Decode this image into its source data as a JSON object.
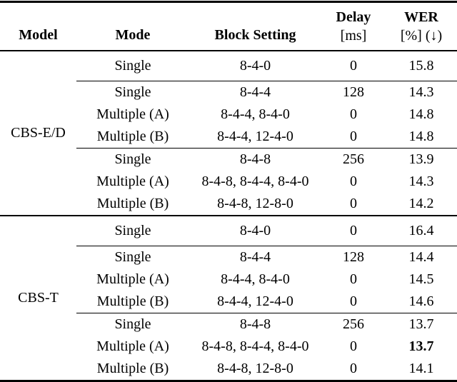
{
  "colors": {
    "background": "#ffffff",
    "text": "#000000",
    "rule": "#000000"
  },
  "headers": {
    "model": "Model",
    "mode": "Mode",
    "block_setting": "Block Setting",
    "delay_top": "Delay",
    "delay_unit": "[ms]",
    "wer_top": "WER",
    "wer_unit": "[%] (↓)"
  },
  "groups": [
    {
      "model": "CBS-E/D",
      "sub": [
        {
          "rows": [
            {
              "mode": "Single",
              "block": "8-4-0",
              "delay": "0",
              "wer": "15.8"
            }
          ]
        },
        {
          "rows": [
            {
              "mode": "Single",
              "block": "8-4-4",
              "delay": "128",
              "wer": "14.3"
            },
            {
              "mode": "Multiple (A)",
              "block": "8-4-4, 8-4-0",
              "delay": "0",
              "wer": "14.8"
            },
            {
              "mode": "Multiple (B)",
              "block": "8-4-4, 12-4-0",
              "delay": "0",
              "wer": "14.8"
            }
          ]
        },
        {
          "rows": [
            {
              "mode": "Single",
              "block": "8-4-8",
              "delay": "256",
              "wer": "13.9"
            },
            {
              "mode": "Multiple (A)",
              "block": "8-4-8, 8-4-4, 8-4-0",
              "delay": "0",
              "wer": "14.3"
            },
            {
              "mode": "Multiple (B)",
              "block": "8-4-8, 12-8-0",
              "delay": "0",
              "wer": "14.2"
            }
          ]
        }
      ]
    },
    {
      "model": "CBS-T",
      "sub": [
        {
          "rows": [
            {
              "mode": "Single",
              "block": "8-4-0",
              "delay": "0",
              "wer": "16.4"
            }
          ]
        },
        {
          "rows": [
            {
              "mode": "Single",
              "block": "8-4-4",
              "delay": "128",
              "wer": "14.4"
            },
            {
              "mode": "Multiple (A)",
              "block": "8-4-4, 8-4-0",
              "delay": "0",
              "wer": "14.5"
            },
            {
              "mode": "Multiple (B)",
              "block": "8-4-4, 12-4-0",
              "delay": "0",
              "wer": "14.6"
            }
          ]
        },
        {
          "rows": [
            {
              "mode": "Single",
              "block": "8-4-8",
              "delay": "256",
              "wer": "13.7"
            },
            {
              "mode": "Multiple (A)",
              "block": "8-4-8, 8-4-4, 8-4-0",
              "delay": "0",
              "wer": "13.7",
              "highlight": true
            },
            {
              "mode": "Multiple (B)",
              "block": "8-4-8, 12-8-0",
              "delay": "0",
              "wer": "14.1"
            }
          ]
        }
      ]
    }
  ]
}
